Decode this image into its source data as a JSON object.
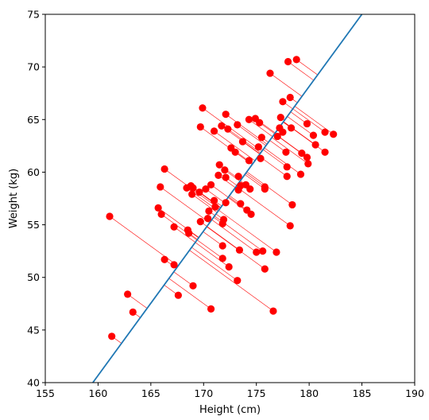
{
  "chart_data": {
    "type": "scatter",
    "title": "",
    "xlabel": "Height (cm)",
    "ylabel": "Weight (kg)",
    "xlim": [
      155,
      190
    ],
    "ylim": [
      40,
      75
    ],
    "xticks": [
      155,
      160,
      165,
      170,
      175,
      180,
      185,
      190
    ],
    "yticks": [
      40,
      45,
      50,
      55,
      60,
      65,
      70,
      75
    ],
    "grid": false,
    "legend": "none",
    "colors": {
      "points": "#ff0000",
      "residuals": "#ff0000",
      "fit_line": "#1f77b4"
    },
    "fit_line": {
      "slope": 1.373,
      "intercept": -179.0
    },
    "points": [
      {
        "x": 161.3,
        "y": 44.4
      },
      {
        "x": 162.8,
        "y": 48.4
      },
      {
        "x": 163.3,
        "y": 46.7
      },
      {
        "x": 161.1,
        "y": 55.8
      },
      {
        "x": 165.7,
        "y": 56.6
      },
      {
        "x": 166.0,
        "y": 56.0
      },
      {
        "x": 165.9,
        "y": 58.6
      },
      {
        "x": 166.3,
        "y": 60.3
      },
      {
        "x": 166.3,
        "y": 51.7
      },
      {
        "x": 167.2,
        "y": 51.2
      },
      {
        "x": 167.2,
        "y": 54.8
      },
      {
        "x": 167.6,
        "y": 48.3
      },
      {
        "x": 168.5,
        "y": 54.5
      },
      {
        "x": 168.6,
        "y": 54.2
      },
      {
        "x": 168.4,
        "y": 58.5
      },
      {
        "x": 168.8,
        "y": 58.7
      },
      {
        "x": 168.9,
        "y": 57.9
      },
      {
        "x": 169.0,
        "y": 58.5
      },
      {
        "x": 169.0,
        "y": 49.2
      },
      {
        "x": 169.6,
        "y": 58.1
      },
      {
        "x": 169.7,
        "y": 55.3
      },
      {
        "x": 169.7,
        "y": 64.3
      },
      {
        "x": 169.9,
        "y": 66.1
      },
      {
        "x": 170.2,
        "y": 58.4
      },
      {
        "x": 170.4,
        "y": 55.6
      },
      {
        "x": 170.5,
        "y": 56.3
      },
      {
        "x": 170.7,
        "y": 58.8
      },
      {
        "x": 170.7,
        "y": 47.0
      },
      {
        "x": 171.0,
        "y": 57.3
      },
      {
        "x": 171.0,
        "y": 63.9
      },
      {
        "x": 171.1,
        "y": 56.7
      },
      {
        "x": 171.4,
        "y": 59.7
      },
      {
        "x": 171.5,
        "y": 60.7
      },
      {
        "x": 171.7,
        "y": 64.4
      },
      {
        "x": 171.8,
        "y": 51.8
      },
      {
        "x": 171.8,
        "y": 53.0
      },
      {
        "x": 171.8,
        "y": 55.1
      },
      {
        "x": 171.9,
        "y": 55.5
      },
      {
        "x": 172.0,
        "y": 60.2
      },
      {
        "x": 172.1,
        "y": 57.1
      },
      {
        "x": 172.1,
        "y": 59.5
      },
      {
        "x": 172.1,
        "y": 65.5
      },
      {
        "x": 172.3,
        "y": 64.1
      },
      {
        "x": 172.4,
        "y": 51.0
      },
      {
        "x": 172.6,
        "y": 62.3
      },
      {
        "x": 173.0,
        "y": 61.9
      },
      {
        "x": 173.2,
        "y": 64.5
      },
      {
        "x": 173.2,
        "y": 49.7
      },
      {
        "x": 173.3,
        "y": 59.6
      },
      {
        "x": 173.3,
        "y": 58.3
      },
      {
        "x": 173.4,
        "y": 52.6
      },
      {
        "x": 173.5,
        "y": 58.7
      },
      {
        "x": 173.5,
        "y": 57.0
      },
      {
        "x": 173.7,
        "y": 62.9
      },
      {
        "x": 174.0,
        "y": 58.8
      },
      {
        "x": 174.1,
        "y": 56.4
      },
      {
        "x": 174.3,
        "y": 65.0
      },
      {
        "x": 174.3,
        "y": 61.1
      },
      {
        "x": 174.4,
        "y": 58.4
      },
      {
        "x": 174.5,
        "y": 56.0
      },
      {
        "x": 174.9,
        "y": 65.1
      },
      {
        "x": 175.0,
        "y": 52.4
      },
      {
        "x": 175.2,
        "y": 62.4
      },
      {
        "x": 175.3,
        "y": 64.7
      },
      {
        "x": 175.4,
        "y": 61.3
      },
      {
        "x": 175.5,
        "y": 63.3
      },
      {
        "x": 175.6,
        "y": 52.5
      },
      {
        "x": 175.8,
        "y": 58.6
      },
      {
        "x": 175.8,
        "y": 50.8
      },
      {
        "x": 175.8,
        "y": 58.4
      },
      {
        "x": 176.3,
        "y": 69.4
      },
      {
        "x": 176.6,
        "y": 46.8
      },
      {
        "x": 176.9,
        "y": 52.4
      },
      {
        "x": 177.0,
        "y": 63.4
      },
      {
        "x": 177.2,
        "y": 64.2
      },
      {
        "x": 177.3,
        "y": 65.2
      },
      {
        "x": 177.5,
        "y": 63.8
      },
      {
        "x": 177.5,
        "y": 66.7
      },
      {
        "x": 177.8,
        "y": 61.9
      },
      {
        "x": 177.9,
        "y": 60.5
      },
      {
        "x": 177.9,
        "y": 59.6
      },
      {
        "x": 178.0,
        "y": 70.5
      },
      {
        "x": 178.2,
        "y": 67.1
      },
      {
        "x": 178.2,
        "y": 54.9
      },
      {
        "x": 178.3,
        "y": 64.2
      },
      {
        "x": 178.4,
        "y": 56.9
      },
      {
        "x": 178.8,
        "y": 70.7
      },
      {
        "x": 179.2,
        "y": 59.8
      },
      {
        "x": 179.3,
        "y": 61.8
      },
      {
        "x": 179.8,
        "y": 64.6
      },
      {
        "x": 179.8,
        "y": 61.4
      },
      {
        "x": 179.9,
        "y": 60.8
      },
      {
        "x": 180.4,
        "y": 63.5
      },
      {
        "x": 180.6,
        "y": 62.6
      },
      {
        "x": 181.5,
        "y": 63.8
      },
      {
        "x": 181.5,
        "y": 61.9
      },
      {
        "x": 182.3,
        "y": 63.6
      }
    ]
  }
}
